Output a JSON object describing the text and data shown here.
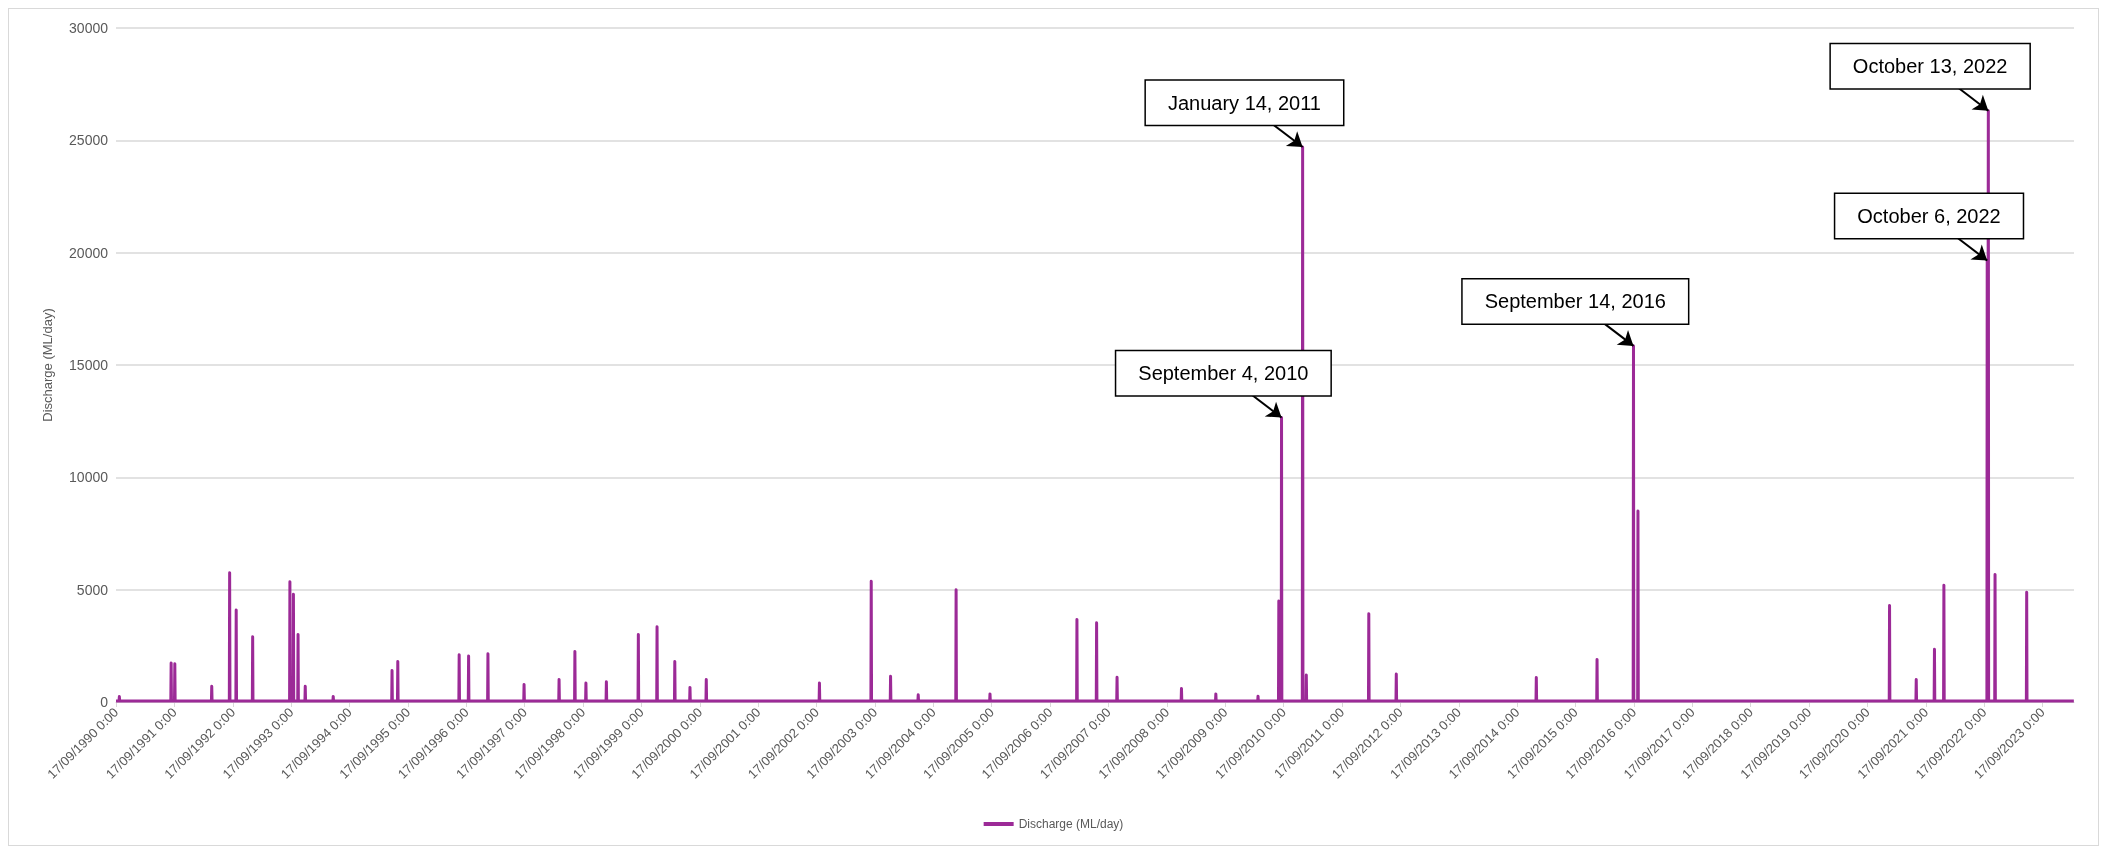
{
  "chart_data": {
    "type": "line",
    "ylabel": "Discharge (ML/day)",
    "legend": "bottom",
    "grid": "y",
    "marker": "none",
    "line_style": "solid",
    "xlim": [
      "1990-09-17",
      "2024-04-01"
    ],
    "ylim": [
      0,
      30000
    ],
    "yticks": [
      0,
      5000,
      10000,
      15000,
      20000,
      25000,
      30000
    ],
    "xticks": [
      {
        "value": "1990-09-17",
        "label": "17/09/1990 0:00"
      },
      {
        "value": "1991-09-17",
        "label": "17/09/1991 0:00"
      },
      {
        "value": "1992-09-17",
        "label": "17/09/1992 0:00"
      },
      {
        "value": "1993-09-17",
        "label": "17/09/1993 0:00"
      },
      {
        "value": "1994-09-17",
        "label": "17/09/1994 0:00"
      },
      {
        "value": "1995-09-17",
        "label": "17/09/1995 0:00"
      },
      {
        "value": "1996-09-17",
        "label": "17/09/1996 0:00"
      },
      {
        "value": "1997-09-17",
        "label": "17/09/1997 0:00"
      },
      {
        "value": "1998-09-17",
        "label": "17/09/1998 0:00"
      },
      {
        "value": "1999-09-17",
        "label": "17/09/1999 0:00"
      },
      {
        "value": "2000-09-17",
        "label": "17/09/2000 0:00"
      },
      {
        "value": "2001-09-17",
        "label": "17/09/2001 0:00"
      },
      {
        "value": "2002-09-17",
        "label": "17/09/2002 0:00"
      },
      {
        "value": "2003-09-17",
        "label": "17/09/2003 0:00"
      },
      {
        "value": "2004-09-17",
        "label": "17/09/2004 0:00"
      },
      {
        "value": "2005-09-17",
        "label": "17/09/2005 0:00"
      },
      {
        "value": "2006-09-17",
        "label": "17/09/2006 0:00"
      },
      {
        "value": "2007-09-17",
        "label": "17/09/2007 0:00"
      },
      {
        "value": "2008-09-17",
        "label": "17/09/2008 0:00"
      },
      {
        "value": "2009-09-17",
        "label": "17/09/2009 0:00"
      },
      {
        "value": "2010-09-17",
        "label": "17/09/2010 0:00"
      },
      {
        "value": "2011-09-17",
        "label": "17/09/2011 0:00"
      },
      {
        "value": "2012-09-17",
        "label": "17/09/2012 0:00"
      },
      {
        "value": "2013-09-17",
        "label": "17/09/2013 0:00"
      },
      {
        "value": "2014-09-17",
        "label": "17/09/2014 0:00"
      },
      {
        "value": "2015-09-17",
        "label": "17/09/2015 0:00"
      },
      {
        "value": "2016-09-17",
        "label": "17/09/2016 0:00"
      },
      {
        "value": "2017-09-17",
        "label": "17/09/2017 0:00"
      },
      {
        "value": "2018-09-17",
        "label": "17/09/2018 0:00"
      },
      {
        "value": "2019-09-17",
        "label": "17/09/2019 0:00"
      },
      {
        "value": "2020-09-17",
        "label": "17/09/2020 0:00"
      },
      {
        "value": "2021-09-17",
        "label": "17/09/2021 0:00"
      },
      {
        "value": "2022-09-17",
        "label": "17/09/2022 0:00"
      },
      {
        "value": "2023-09-17",
        "label": "17/09/2023 0:00"
      }
    ],
    "annotations": [
      {
        "text": "September 4, 2010",
        "x": "2010-09-04",
        "y": 12660
      },
      {
        "text": "January 14, 2011",
        "x": "2011-01-14",
        "y": 24700
      },
      {
        "text": "September 14, 2016",
        "x": "2016-09-14",
        "y": 15850
      },
      {
        "text": "October 6, 2022",
        "x": "2022-10-06",
        "y": 19650
      },
      {
        "text": "October 13, 2022",
        "x": "2022-10-13",
        "y": 26320
      }
    ],
    "series": [
      {
        "name": "Discharge (ML/day)",
        "color": "#9c2a97",
        "x": [
          "1990-09-17",
          "1990-10-06",
          "1990-10-08",
          "1990-10-10",
          "1991-08-26",
          "1991-08-28",
          "1991-08-30",
          "1991-09-18",
          "1991-09-20",
          "1991-09-22",
          "1992-05-06",
          "1992-05-08",
          "1992-05-10",
          "1992-08-26",
          "1992-08-28",
          "1992-08-30",
          "1992-10-06",
          "1992-10-08",
          "1992-10-10",
          "1993-01-17",
          "1993-01-19",
          "1993-01-21",
          "1993-09-07",
          "1993-09-09",
          "1993-09-11",
          "1993-09-29",
          "1993-10-01",
          "1993-10-03",
          "1993-10-28",
          "1993-10-30",
          "1993-11-01",
          "1993-12-12",
          "1993-12-14",
          "1993-12-16",
          "1994-06-05",
          "1994-06-07",
          "1994-06-09",
          "1995-06-08",
          "1995-06-10",
          "1995-06-12",
          "1995-07-14",
          "1995-07-16",
          "1995-07-18",
          "1996-08-01",
          "1996-08-03",
          "1996-08-05",
          "1996-09-29",
          "1996-10-01",
          "1996-10-03",
          "1997-01-28",
          "1997-01-30",
          "1997-02-01",
          "1997-09-11",
          "1997-09-13",
          "1997-09-15",
          "1998-04-18",
          "1998-04-20",
          "1998-04-22",
          "1998-07-26",
          "1998-07-28",
          "1998-07-30",
          "1998-10-03",
          "1998-10-05",
          "1998-10-07",
          "1999-02-08",
          "1999-02-10",
          "1999-02-12",
          "1999-08-27",
          "1999-08-29",
          "1999-08-31",
          "1999-12-22",
          "1999-12-24",
          "1999-12-26",
          "2000-04-11",
          "2000-04-13",
          "2000-04-15",
          "2000-07-15",
          "2000-07-17",
          "2000-07-19",
          "2000-10-25",
          "2000-10-27",
          "2000-10-29",
          "2002-10-03",
          "2002-10-05",
          "2002-10-07",
          "2003-08-23",
          "2003-08-25",
          "2003-08-27",
          "2003-12-22",
          "2003-12-24",
          "2003-12-26",
          "2004-06-12",
          "2004-06-14",
          "2004-06-16",
          "2005-02-04",
          "2005-02-06",
          "2005-02-08",
          "2005-09-04",
          "2005-09-06",
          "2005-09-08",
          "2007-03-02",
          "2007-03-04",
          "2007-03-06",
          "2007-07-03",
          "2007-07-05",
          "2007-07-07",
          "2007-11-08",
          "2007-11-10",
          "2007-11-12",
          "2008-12-15",
          "2008-12-17",
          "2008-12-19",
          "2009-07-18",
          "2009-07-20",
          "2009-07-22",
          "2010-04-08",
          "2010-04-10",
          "2010-04-12",
          "2010-08-16",
          "2010-08-18",
          "2010-08-20",
          "2010-09-02",
          "2010-09-04",
          "2010-09-06",
          "2011-01-12",
          "2011-01-14",
          "2011-01-16",
          "2011-02-04",
          "2011-02-06",
          "2011-02-08",
          "2012-03-01",
          "2012-03-03",
          "2012-03-05",
          "2012-08-20",
          "2012-08-22",
          "2012-08-24",
          "2015-01-13",
          "2015-01-15",
          "2015-01-17",
          "2016-01-28",
          "2016-01-30",
          "2016-02-01",
          "2016-09-12",
          "2016-09-14",
          "2016-09-16",
          "2016-10-10",
          "2016-10-12",
          "2016-10-14",
          "2021-01-31",
          "2021-02-02",
          "2021-02-04",
          "2021-07-17",
          "2021-07-19",
          "2021-07-21",
          "2021-11-08",
          "2021-11-10",
          "2021-11-12",
          "2022-01-06",
          "2022-01-08",
          "2022-01-10",
          "2022-10-04",
          "2022-10-06",
          "2022-10-09",
          "2022-10-13",
          "2022-10-15",
          "2022-11-22",
          "2022-11-24",
          "2022-11-26",
          "2023-06-08",
          "2023-06-10",
          "2023-06-12",
          "2024-03-31"
        ],
        "values": [
          40,
          40,
          240,
          40,
          40,
          1740,
          40,
          40,
          1700,
          40,
          40,
          700,
          40,
          40,
          5750,
          40,
          40,
          4100,
          40,
          40,
          2900,
          40,
          40,
          5350,
          40,
          40,
          4800,
          40,
          40,
          3000,
          40,
          40,
          700,
          40,
          40,
          250,
          40,
          40,
          1400,
          40,
          40,
          1800,
          40,
          40,
          2100,
          40,
          40,
          2050,
          40,
          40,
          2150,
          40,
          40,
          780,
          40,
          40,
          1000,
          40,
          40,
          2250,
          40,
          40,
          850,
          40,
          40,
          900,
          40,
          40,
          3000,
          40,
          40,
          3350,
          40,
          40,
          1800,
          40,
          40,
          650,
          40,
          40,
          1000,
          40,
          40,
          850,
          40,
          40,
          5380,
          40,
          40,
          1150,
          40,
          40,
          320,
          40,
          40,
          5000,
          40,
          40,
          360,
          40,
          40,
          3670,
          40,
          40,
          3530,
          40,
          40,
          1100,
          40,
          40,
          600,
          40,
          40,
          360,
          40,
          40,
          260,
          40,
          40,
          4500,
          40,
          40,
          12660,
          40,
          40,
          24700,
          40,
          40,
          1200,
          40,
          40,
          3930,
          40,
          40,
          1250,
          40,
          40,
          1090,
          40,
          40,
          1890,
          40,
          40,
          15850,
          40,
          40,
          8500,
          40,
          40,
          4300,
          40,
          40,
          1000,
          40,
          40,
          2350,
          40,
          40,
          5200,
          40,
          40,
          19650,
          2000,
          26320,
          40,
          40,
          5680,
          40,
          40,
          4890,
          40,
          40
        ]
      }
    ]
  }
}
